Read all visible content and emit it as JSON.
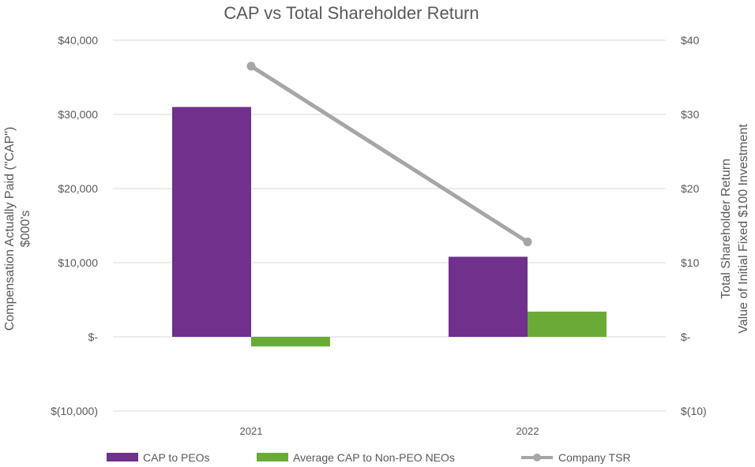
{
  "chart_data": {
    "type": "bar",
    "title": "CAP vs Total Shareholder Return",
    "categories": [
      "2021",
      "2022"
    ],
    "series": [
      {
        "name": "CAP to PEOs",
        "kind": "bar",
        "axis": "left",
        "color": "#70308C",
        "values": [
          31000,
          10800
        ]
      },
      {
        "name": "Average CAP to Non-PEO NEOs",
        "kind": "bar",
        "axis": "left",
        "color": "#6AAB38",
        "values": [
          -1300,
          3400
        ]
      },
      {
        "name": "Company TSR",
        "kind": "line",
        "axis": "right",
        "color": "#A6A6A6",
        "values": [
          36.5,
          12.8
        ]
      }
    ],
    "y_left": {
      "label_line1": "Compensation Actually Paid (\"CAP\")",
      "label_line2": "$000's",
      "ylim": [
        -10000,
        40000
      ],
      "ticks": [
        40000,
        30000,
        20000,
        10000,
        0,
        -10000
      ],
      "tick_labels": [
        "$40,000",
        "$30,000",
        "$20,000",
        "$10,000",
        "$-",
        "$(10,000)"
      ]
    },
    "y_right": {
      "label_line1": "Total Shareholder Return",
      "label_line2": "Value of Initial Fixed $100 Investment",
      "ylim": [
        -10,
        40
      ],
      "ticks": [
        40,
        30,
        20,
        10,
        0,
        -10
      ],
      "tick_labels": [
        "$40",
        "$30",
        "$20",
        "$10",
        "$-",
        "$(10)"
      ]
    },
    "grid": true,
    "legend_position": "bottom"
  }
}
